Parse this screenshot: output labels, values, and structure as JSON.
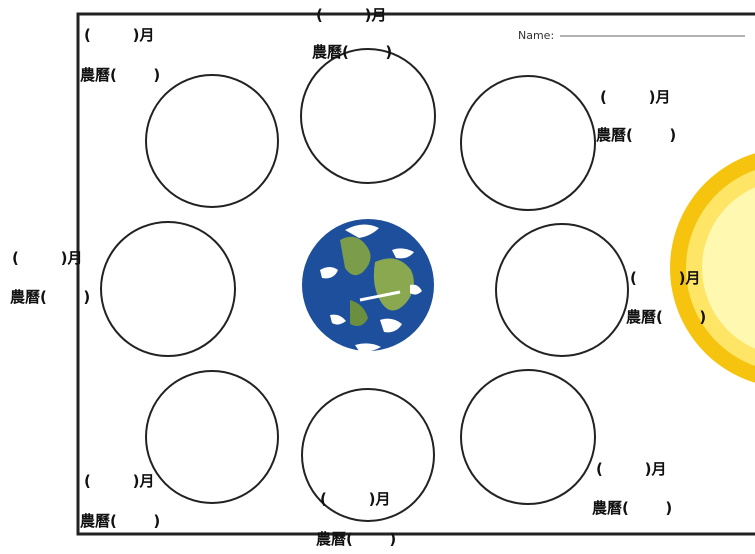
{
  "worksheet": {
    "name_label": "Name:",
    "month_label": "(        )月",
    "lunar_label": "農曆(       )"
  },
  "colors": {
    "frame": "#222222",
    "circle_stroke": "#222222",
    "earth_ocean": "#1d4f9c",
    "earth_land": "#7a9c4b",
    "earth_cloud": "#ffffff",
    "sun_outer": "#f6c40f",
    "sun_inner": "#fff8b0"
  },
  "icons": [
    "earth-icon",
    "sun-icon"
  ]
}
